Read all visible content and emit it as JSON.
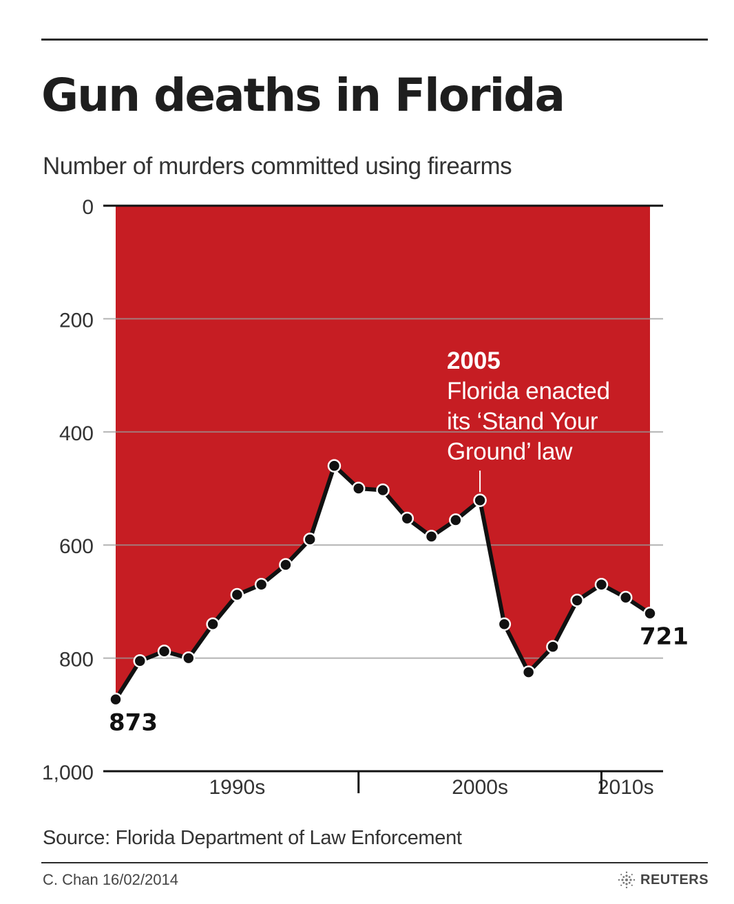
{
  "header": {
    "title": "Gun deaths in Florida",
    "subtitle": "Number of murders committed using firearms"
  },
  "chart_data": {
    "type": "area",
    "title": "Gun deaths in Florida",
    "subtitle": "Number of murders committed using firearms",
    "y_inverted": true,
    "ylim": [
      0,
      1000
    ],
    "y_ticks": [
      0,
      200,
      400,
      600,
      800,
      1000
    ],
    "y_tick_labels": [
      "0",
      "200",
      "400",
      "600",
      "800",
      "1,000"
    ],
    "x_range": [
      1990,
      2012
    ],
    "x_periods": [
      {
        "label": "1990s",
        "from": 1990,
        "to": 2000
      },
      {
        "label": "2000s",
        "from": 2000,
        "to": 2010
      },
      {
        "label": "2010s",
        "from": 2010,
        "to": 2012
      }
    ],
    "series": [
      {
        "x": [
          1990,
          1991,
          1992,
          1993,
          1994,
          1995,
          1996,
          1997,
          1998,
          1999,
          2000,
          2001,
          2002,
          2003,
          2004,
          2005,
          2006,
          2007,
          2008,
          2009,
          2010,
          2011,
          2012
        ],
        "values": [
          873,
          805,
          788,
          800,
          740,
          688,
          670,
          635,
          590,
          460,
          500,
          503,
          553,
          585,
          556,
          521,
          740,
          825,
          780,
          698,
          670,
          693,
          721
        ]
      }
    ],
    "fill_color": "#c61d23",
    "line_color": "#111111",
    "grid": true,
    "data_labels": [
      {
        "x": 1990,
        "text": "873"
      },
      {
        "x": 2012,
        "text": "721"
      }
    ],
    "annotations": [
      {
        "x": 2005,
        "year": "2005",
        "lines": [
          "Florida enacted",
          "its ‘Stand Your",
          "Ground’ law"
        ]
      }
    ]
  },
  "footer": {
    "source": "Source: Florida Department of Law Enforcement",
    "credit": "C. Chan  16/02/2014",
    "brand": "REUTERS",
    "brand_icon": "reuters-logo-icon"
  }
}
